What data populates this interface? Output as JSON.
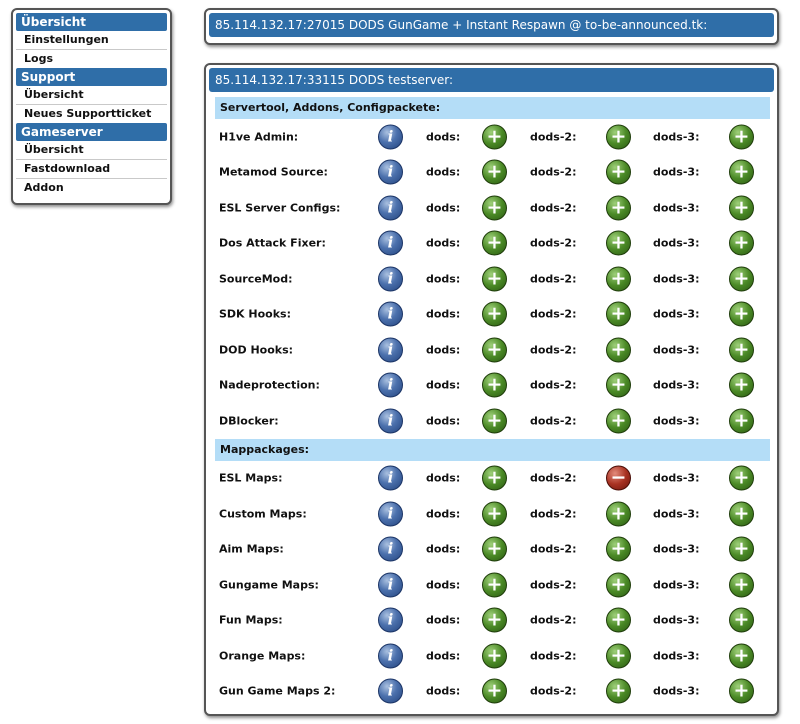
{
  "sidebar": {
    "groups": [
      {
        "title": "Übersicht",
        "items": [
          "Einstellungen",
          "Logs"
        ]
      },
      {
        "title": "Support",
        "items": [
          "Übersicht",
          "Neues Supportticket"
        ]
      },
      {
        "title": "Gameserver",
        "items": [
          "Übersicht",
          "Fastdownload",
          "Addon"
        ]
      }
    ]
  },
  "server1": {
    "title": "85.114.132.17:27015 DODS GunGame + Instant Respawn @ to-be-announced.tk:"
  },
  "server2": {
    "title": "85.114.132.17:33115 DODS testserver:",
    "columns": [
      "dods:",
      "dods-2:",
      "dods-3:"
    ],
    "info_glyph": "i",
    "sections": [
      {
        "title": "Servertool, Addons, Configpackete:",
        "rows": [
          {
            "name": "H1ve Admin:",
            "status": [
              "+",
              "+",
              "+"
            ]
          },
          {
            "name": "Metamod Source:",
            "status": [
              "+",
              "+",
              "+"
            ]
          },
          {
            "name": "ESL Server Configs:",
            "status": [
              "+",
              "+",
              "+"
            ]
          },
          {
            "name": "Dos Attack Fixer:",
            "status": [
              "+",
              "+",
              "+"
            ]
          },
          {
            "name": "SourceMod:",
            "status": [
              "+",
              "+",
              "+"
            ]
          },
          {
            "name": "SDK Hooks:",
            "status": [
              "+",
              "+",
              "+"
            ]
          },
          {
            "name": "DOD Hooks:",
            "status": [
              "+",
              "+",
              "+"
            ]
          },
          {
            "name": "Nadeprotection:",
            "status": [
              "+",
              "+",
              "+"
            ]
          },
          {
            "name": "DBlocker:",
            "status": [
              "+",
              "+",
              "+"
            ]
          }
        ]
      },
      {
        "title": "Mappackages:",
        "rows": [
          {
            "name": "ESL Maps:",
            "status": [
              "+",
              "−",
              "+"
            ]
          },
          {
            "name": "Custom Maps:",
            "status": [
              "+",
              "+",
              "+"
            ]
          },
          {
            "name": "Aim Maps:",
            "status": [
              "+",
              "+",
              "+"
            ]
          },
          {
            "name": "Gungame Maps:",
            "status": [
              "+",
              "+",
              "+"
            ]
          },
          {
            "name": "Fun Maps:",
            "status": [
              "+",
              "+",
              "+"
            ]
          },
          {
            "name": "Orange Maps:",
            "status": [
              "+",
              "+",
              "+"
            ]
          },
          {
            "name": "Gun Game Maps 2:",
            "status": [
              "+",
              "+",
              "+"
            ]
          }
        ]
      }
    ]
  },
  "colors": {
    "header_blue": "#2f6ea8",
    "section_light_blue": "#b4ddf7",
    "install_green": "#4b8a26",
    "remove_red": "#a83222",
    "info_blue": "#4c71ad"
  },
  "icons": {
    "info": "info-icon",
    "install": "plus-icon",
    "remove": "minus-icon"
  }
}
